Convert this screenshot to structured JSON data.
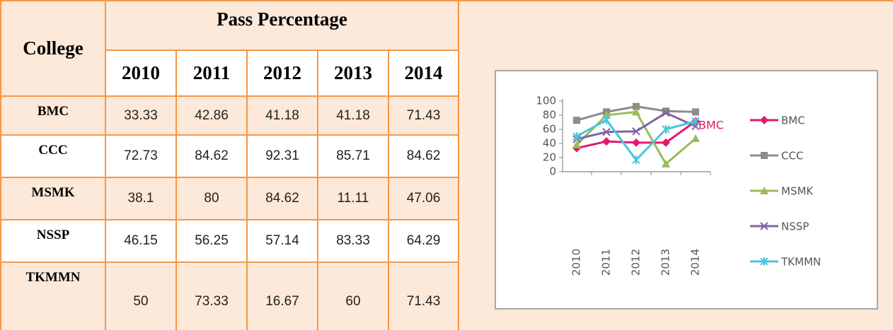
{
  "table": {
    "header": {
      "college": "College",
      "group": "Pass Percentage",
      "years": [
        "2010",
        "2011",
        "2012",
        "2013",
        "2014"
      ]
    },
    "rows": [
      {
        "college": "BMC",
        "values": [
          33.33,
          42.86,
          41.18,
          41.18,
          71.43
        ]
      },
      {
        "college": "CCC",
        "values": [
          72.73,
          84.62,
          92.31,
          85.71,
          84.62
        ]
      },
      {
        "college": "MSMK",
        "values": [
          38.1,
          80,
          84.62,
          11.11,
          47.06
        ]
      },
      {
        "college": "NSSP",
        "values": [
          46.15,
          56.25,
          57.14,
          83.33,
          64.29
        ]
      },
      {
        "college": "TKMMN",
        "values": [
          50,
          73.33,
          16.67,
          60,
          71.43
        ]
      }
    ]
  },
  "chart_data": {
    "type": "line",
    "categories": [
      "2010",
      "2011",
      "2012",
      "2013",
      "2014"
    ],
    "ylim": [
      0,
      100
    ],
    "yticks": [
      0,
      20,
      40,
      60,
      80,
      100
    ],
    "legend": "right",
    "annotation": "BMC",
    "series": [
      {
        "name": "BMC",
        "color": "#e3196b",
        "marker": "diamond",
        "values": [
          33.33,
          42.86,
          41.18,
          41.18,
          71.43
        ]
      },
      {
        "name": "CCC",
        "color": "#8c8c8c",
        "marker": "square",
        "values": [
          72.73,
          84.62,
          92.31,
          85.71,
          84.62
        ]
      },
      {
        "name": "MSMK",
        "color": "#9bbb59",
        "marker": "triangle",
        "values": [
          38.1,
          80,
          84.62,
          11.11,
          47.06
        ]
      },
      {
        "name": "NSSP",
        "color": "#8064a2",
        "marker": "x",
        "values": [
          46.15,
          56.25,
          57.14,
          83.33,
          64.29
        ]
      },
      {
        "name": "TKMMN",
        "color": "#4bc5dc",
        "marker": "star",
        "values": [
          50,
          73.33,
          16.67,
          60,
          71.43
        ]
      }
    ]
  }
}
